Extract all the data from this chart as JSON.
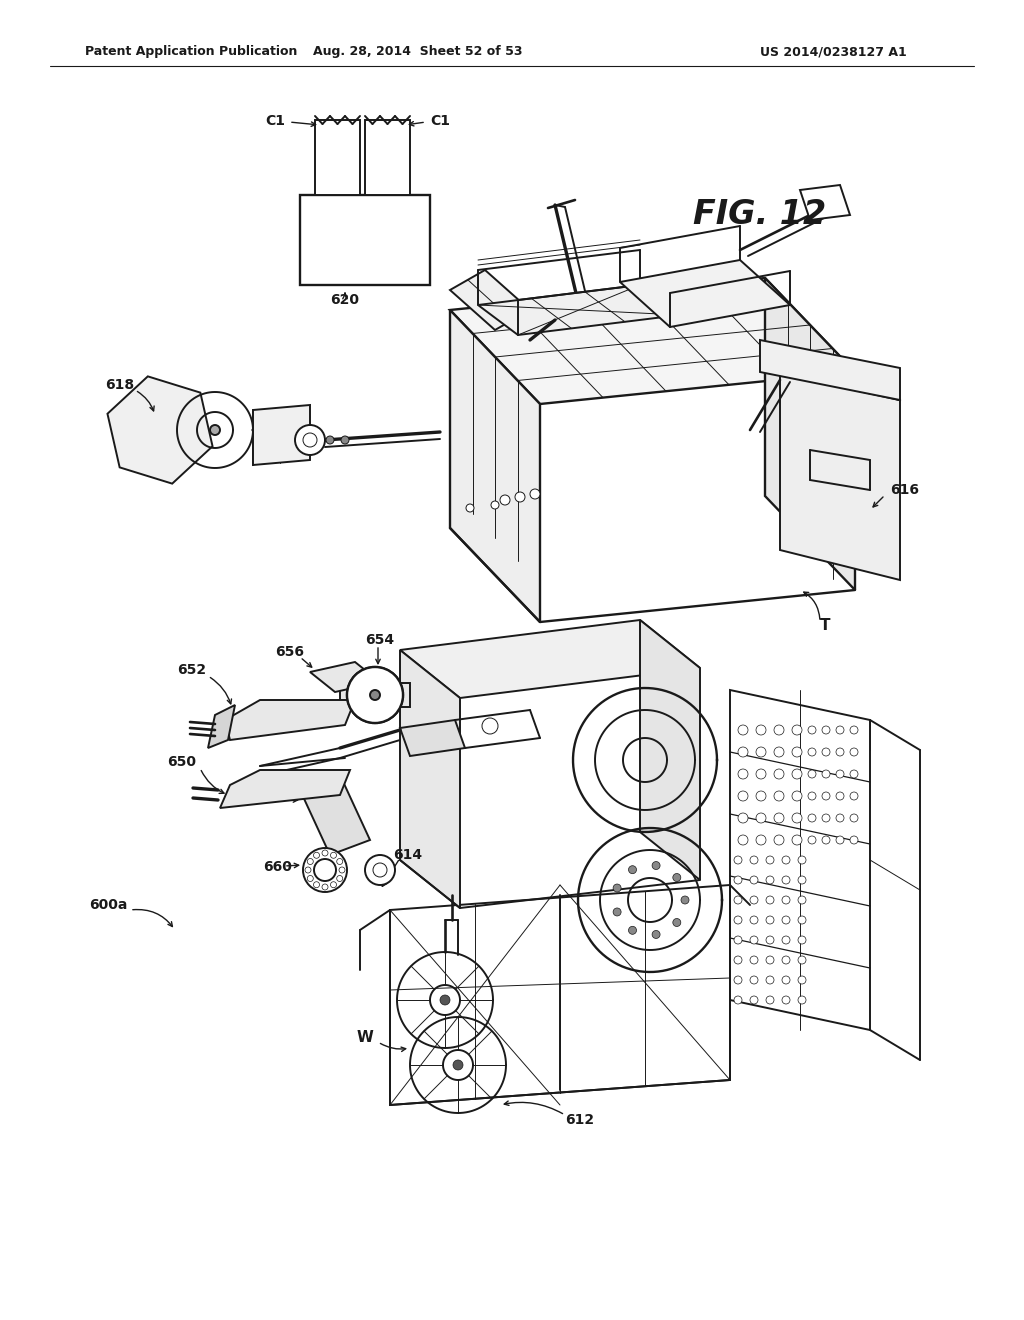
{
  "bg_color": "#ffffff",
  "header_left": "Patent Application Publication",
  "header_center": "Aug. 28, 2014  Sheet 52 of 53",
  "header_right": "US 2014/0238127 A1",
  "fig_label": "FIG. 12",
  "line_color": "#1a1a1a",
  "line_width": 1.4,
  "thin_line": 0.7,
  "label_fontsize": 10,
  "header_fontsize": 9
}
